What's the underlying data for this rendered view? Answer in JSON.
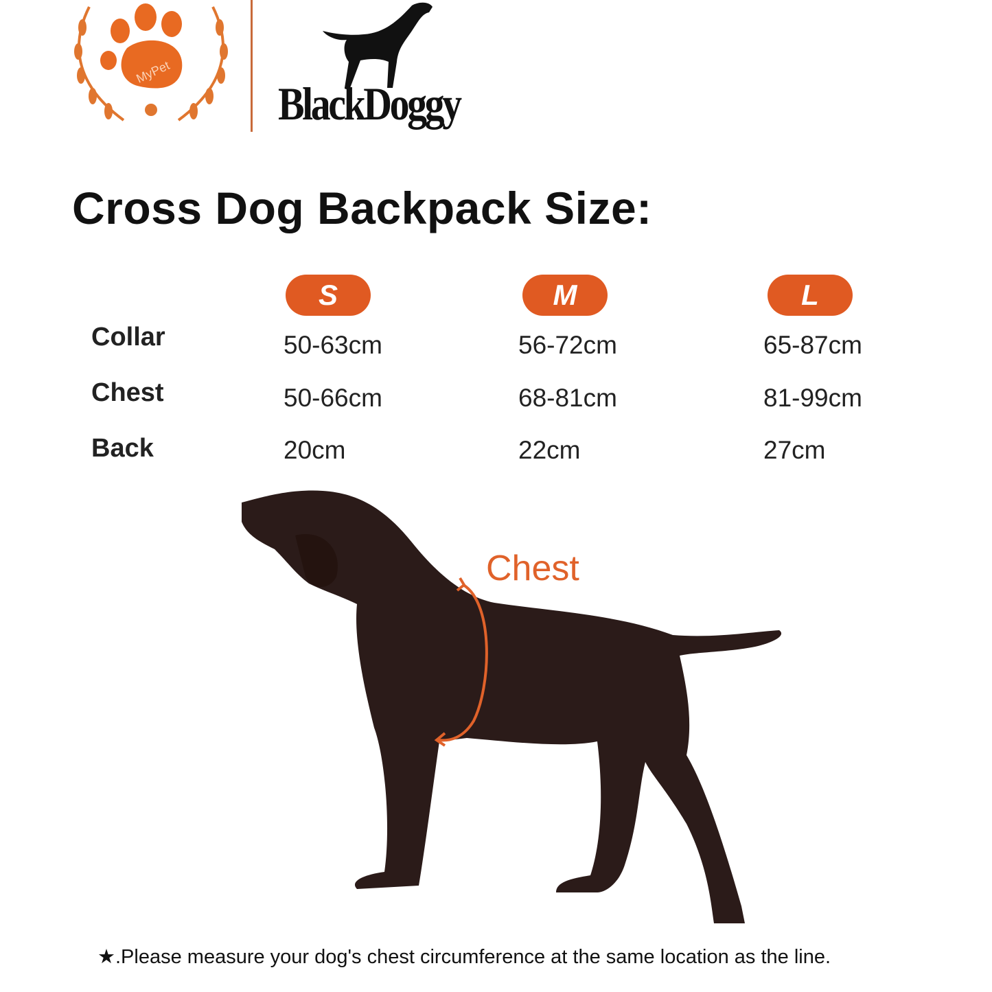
{
  "logos": {
    "mypet": {
      "text": "MyPet",
      "color": "#e0622a"
    },
    "brand": {
      "text": "BlackDoggy"
    }
  },
  "title": "Cross Dog Backpack Size:",
  "size_table": {
    "sizes": [
      "S",
      "M",
      "L"
    ],
    "rows": [
      {
        "label": "Collar",
        "values": [
          "50-63cm",
          "56-72cm",
          "65-87cm"
        ]
      },
      {
        "label": "Chest",
        "values": [
          "50-66cm",
          "68-81cm",
          "81-99cm"
        ]
      },
      {
        "label": "Back",
        "values": [
          "20cm",
          "22cm",
          "27cm"
        ]
      }
    ],
    "badge_color": "#e05a22"
  },
  "diagram": {
    "measure_label": "Chest",
    "dog_color": "#2b1b19",
    "accent_color": "#e0622a"
  },
  "footer": {
    "note": "★.Please measure your dog's chest circumference at the same location as the line."
  }
}
